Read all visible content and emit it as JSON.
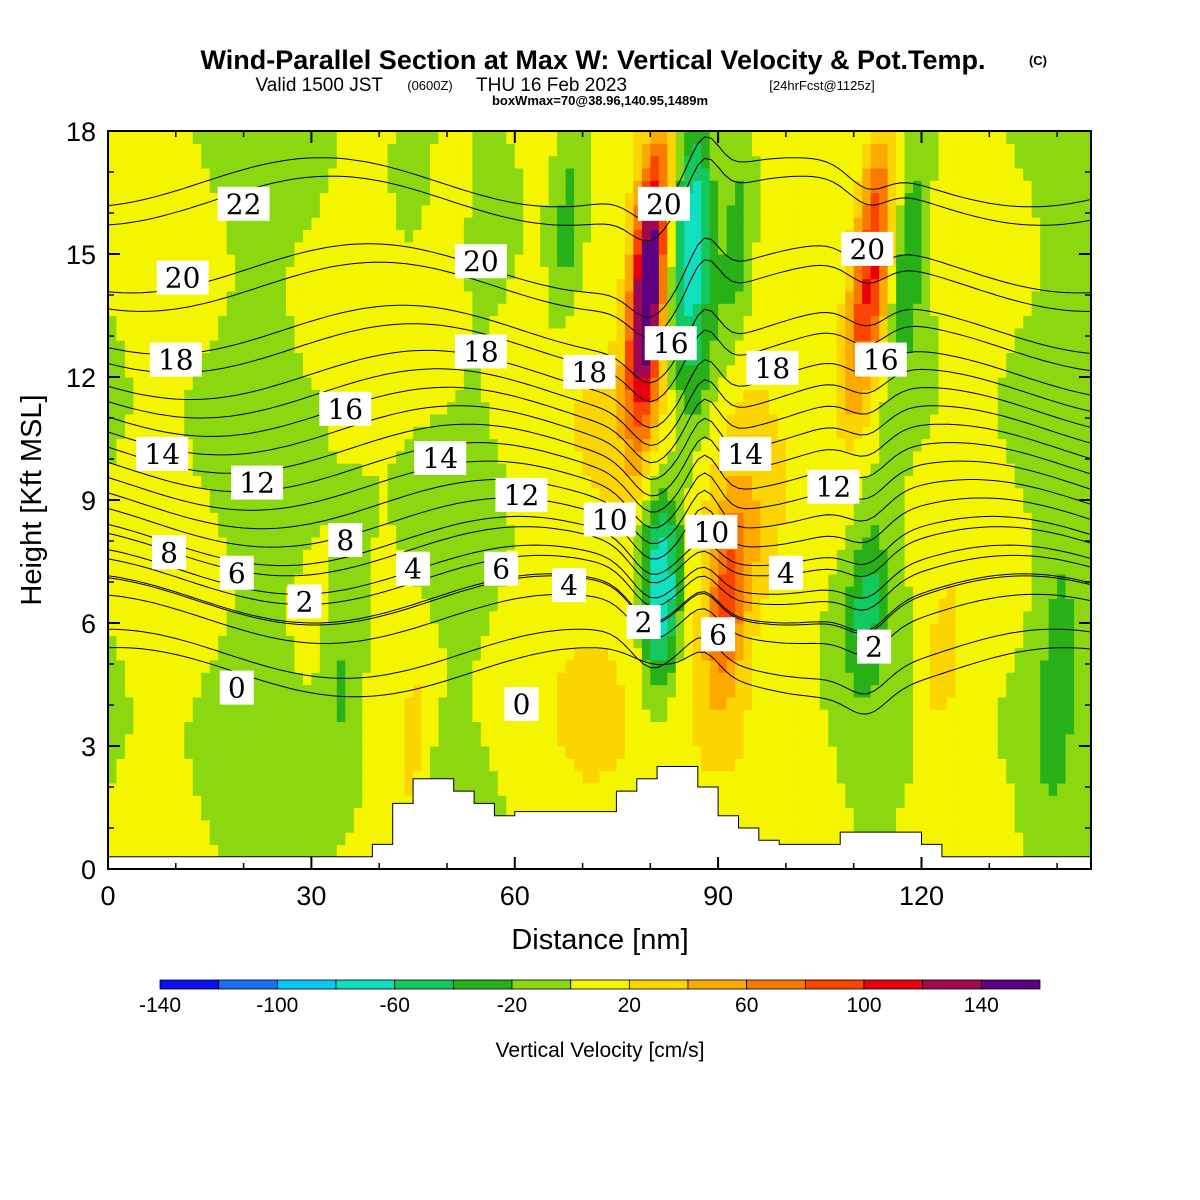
{
  "title": {
    "main": "Wind-Parallel Section at Max W: Vertical Velocity & Pot.Temp.",
    "main_mark": "(C)",
    "valid_prefix": "Valid 1500 JST",
    "valid_zulu": "(0600Z)",
    "valid_date": "THU 16 Feb 2023",
    "forecast": "[24hrFcst@1125z]",
    "box_info": "boxWmax=70@38.96,140.95,1489m"
  },
  "chart_data": {
    "type": "heatmap",
    "xlabel": "Distance [nm]",
    "ylabel": "Height [Kft MSL]",
    "xlim": [
      0,
      145
    ],
    "ylim": [
      0,
      18
    ],
    "xticks": [
      "0",
      "30",
      "60",
      "90",
      "120"
    ],
    "yticks": [
      "0",
      "3",
      "6",
      "9",
      "12",
      "15",
      "18"
    ],
    "xtick_values": [
      0,
      30,
      60,
      90,
      120
    ],
    "ytick_values": [
      0,
      3,
      6,
      9,
      12,
      15,
      18
    ],
    "colorbar": {
      "title": "Vertical Velocity [cm/s]",
      "tick_labels": [
        "-140",
        "-100",
        "-60",
        "-20",
        "20",
        "60",
        "100",
        "140"
      ],
      "tick_values": [
        -140,
        -100,
        -60,
        -20,
        20,
        60,
        100,
        140
      ],
      "bins": [
        {
          "from": -140,
          "to": -120,
          "color": "#0a10f0"
        },
        {
          "from": -120,
          "to": -100,
          "color": "#1870f5"
        },
        {
          "from": -100,
          "to": -80,
          "color": "#0ac8f5"
        },
        {
          "from": -80,
          "to": -60,
          "color": "#10e0c0"
        },
        {
          "from": -60,
          "to": -40,
          "color": "#14c860"
        },
        {
          "from": -40,
          "to": -20,
          "color": "#28b018"
        },
        {
          "from": -20,
          "to": 0,
          "color": "#8cd810"
        },
        {
          "from": 0,
          "to": 20,
          "color": "#f5f500"
        },
        {
          "from": 20,
          "to": 40,
          "color": "#fcd400"
        },
        {
          "from": 40,
          "to": 60,
          "color": "#fcaa00"
        },
        {
          "from": 60,
          "to": 80,
          "color": "#fa7a00"
        },
        {
          "from": 80,
          "to": 100,
          "color": "#fa4400"
        },
        {
          "from": 100,
          "to": 120,
          "color": "#e80010"
        },
        {
          "from": 120,
          "to": 140,
          "color": "#a00850"
        },
        {
          "from": 140,
          "to": 160,
          "color": "#5a0080"
        }
      ]
    },
    "velocity_features": [
      {
        "x": 83,
        "y": 8.0,
        "value": 25,
        "sx": 18,
        "sy": 10
      },
      {
        "x": 80,
        "y": 15.0,
        "value": 130,
        "sx": 2.6,
        "sy": 3.0
      },
      {
        "x": 79,
        "y": 12.5,
        "value": 70,
        "sx": 2.5,
        "sy": 2.5
      },
      {
        "x": 86,
        "y": 15.5,
        "value": -85,
        "sx": 3.0,
        "sy": 3.0
      },
      {
        "x": 87,
        "y": 12.0,
        "value": -40,
        "sx": 3.0,
        "sy": 2.5
      },
      {
        "x": 93,
        "y": 15.5,
        "value": -45,
        "sx": 2.6,
        "sy": 3.0
      },
      {
        "x": 113,
        "y": 15.0,
        "value": 100,
        "sx": 2.8,
        "sy": 3.0
      },
      {
        "x": 110,
        "y": 12.5,
        "value": 45,
        "sx": 2.8,
        "sy": 2.2
      },
      {
        "x": 118,
        "y": 15.0,
        "value": -40,
        "sx": 2.6,
        "sy": 2.8
      },
      {
        "x": 68,
        "y": 16.0,
        "value": -35,
        "sx": 2.5,
        "sy": 3.0
      },
      {
        "x": 50,
        "y": 15.5,
        "value": 25,
        "sx": 3.0,
        "sy": 3.0
      },
      {
        "x": 82,
        "y": 6.5,
        "value": -85,
        "sx": 2.6,
        "sy": 2.4
      },
      {
        "x": 80,
        "y": 8.0,
        "value": -40,
        "sx": 2.5,
        "sy": 1.8
      },
      {
        "x": 91,
        "y": 6.0,
        "value": 65,
        "sx": 2.8,
        "sy": 2.0
      },
      {
        "x": 93,
        "y": 8.0,
        "value": 30,
        "sx": 3.5,
        "sy": 1.8
      },
      {
        "x": 112,
        "y": 6.5,
        "value": -45,
        "sx": 3.0,
        "sy": 2.0
      },
      {
        "x": 123,
        "y": 5.0,
        "value": 30,
        "sx": 3.0,
        "sy": 2.0
      },
      {
        "x": 45,
        "y": 3.0,
        "value": 30,
        "sx": 2.0,
        "sy": 2.0
      },
      {
        "x": 35,
        "y": 5.0,
        "value": -30,
        "sx": 3.0,
        "sy": 3.0
      },
      {
        "x": 140,
        "y": 5.0,
        "value": -25,
        "sx": 3.0,
        "sy": 4.0
      }
    ],
    "terrain": {
      "x": [
        0,
        39,
        39,
        42,
        42,
        45,
        45,
        51,
        51,
        54,
        54,
        57,
        57,
        60,
        60,
        75,
        75,
        78,
        78,
        81,
        81,
        87,
        87,
        90,
        90,
        93,
        93,
        96,
        96,
        99,
        99,
        108,
        108,
        120,
        120,
        123,
        123,
        145
      ],
      "y": [
        0.3,
        0.3,
        0.6,
        0.6,
        1.6,
        1.6,
        2.2,
        2.2,
        1.9,
        1.9,
        1.6,
        1.6,
        1.3,
        1.3,
        1.4,
        1.4,
        1.9,
        1.9,
        2.2,
        2.2,
        2.5,
        2.5,
        2.0,
        2.0,
        1.3,
        1.3,
        1.0,
        1.0,
        0.7,
        0.7,
        0.6,
        0.6,
        0.9,
        0.9,
        0.6,
        0.6,
        0.3,
        0.3
      ]
    },
    "theta_contours": {
      "levels": [
        0,
        2,
        4,
        6,
        8,
        10,
        12,
        14,
        16,
        18,
        20,
        22
      ],
      "base_profile": [
        {
          "value": 0,
          "height": 4.8
        },
        {
          "value": 2,
          "height": 6.1
        },
        {
          "value": 4,
          "height": 6.6
        },
        {
          "value": 6,
          "height": 7.3
        },
        {
          "value": 8,
          "height": 8.0
        },
        {
          "value": 10,
          "height": 8.9
        },
        {
          "value": 12,
          "height": 9.8
        },
        {
          "value": 14,
          "height": 10.7
        },
        {
          "value": 16,
          "height": 11.6
        },
        {
          "value": 18,
          "height": 12.7
        },
        {
          "value": 20,
          "height": 14.2
        },
        {
          "value": 22,
          "height": 16.3
        }
      ],
      "labels": [
        {
          "text": "22",
          "x": 20,
          "y": 16.2
        },
        {
          "text": "20",
          "x": 11,
          "y": 14.4
        },
        {
          "text": "18",
          "x": 10,
          "y": 12.4
        },
        {
          "text": "16",
          "x": 35,
          "y": 11.2
        },
        {
          "text": "14",
          "x": 8,
          "y": 10.1
        },
        {
          "text": "12",
          "x": 22,
          "y": 9.4
        },
        {
          "text": "8",
          "x": 9,
          "y": 7.7
        },
        {
          "text": "6",
          "x": 19,
          "y": 7.2
        },
        {
          "text": "2",
          "x": 29,
          "y": 6.5
        },
        {
          "text": "0",
          "x": 19,
          "y": 4.4
        },
        {
          "text": "20",
          "x": 55,
          "y": 14.8
        },
        {
          "text": "18",
          "x": 55,
          "y": 12.6
        },
        {
          "text": "14",
          "x": 49,
          "y": 10.0
        },
        {
          "text": "12",
          "x": 61,
          "y": 9.1
        },
        {
          "text": "8",
          "x": 35,
          "y": 8.0
        },
        {
          "text": "4",
          "x": 45,
          "y": 7.3
        },
        {
          "text": "6",
          "x": 58,
          "y": 7.3
        },
        {
          "text": "4",
          "x": 68,
          "y": 6.9
        },
        {
          "text": "0",
          "x": 61,
          "y": 4.0
        },
        {
          "text": "10",
          "x": 74,
          "y": 8.5
        },
        {
          "text": "18",
          "x": 71,
          "y": 12.1
        },
        {
          "text": "20",
          "x": 82,
          "y": 16.2
        },
        {
          "text": "16",
          "x": 83,
          "y": 12.8
        },
        {
          "text": "2",
          "x": 79,
          "y": 6.0
        },
        {
          "text": "10",
          "x": 89,
          "y": 8.2
        },
        {
          "text": "6",
          "x": 90,
          "y": 5.7
        },
        {
          "text": "14",
          "x": 94,
          "y": 10.1
        },
        {
          "text": "18",
          "x": 98,
          "y": 12.2
        },
        {
          "text": "4",
          "x": 100,
          "y": 7.2
        },
        {
          "text": "12",
          "x": 107,
          "y": 9.3
        },
        {
          "text": "20",
          "x": 112,
          "y": 15.1
        },
        {
          "text": "16",
          "x": 114,
          "y": 12.4
        },
        {
          "text": "2",
          "x": 113,
          "y": 5.4
        }
      ]
    }
  }
}
